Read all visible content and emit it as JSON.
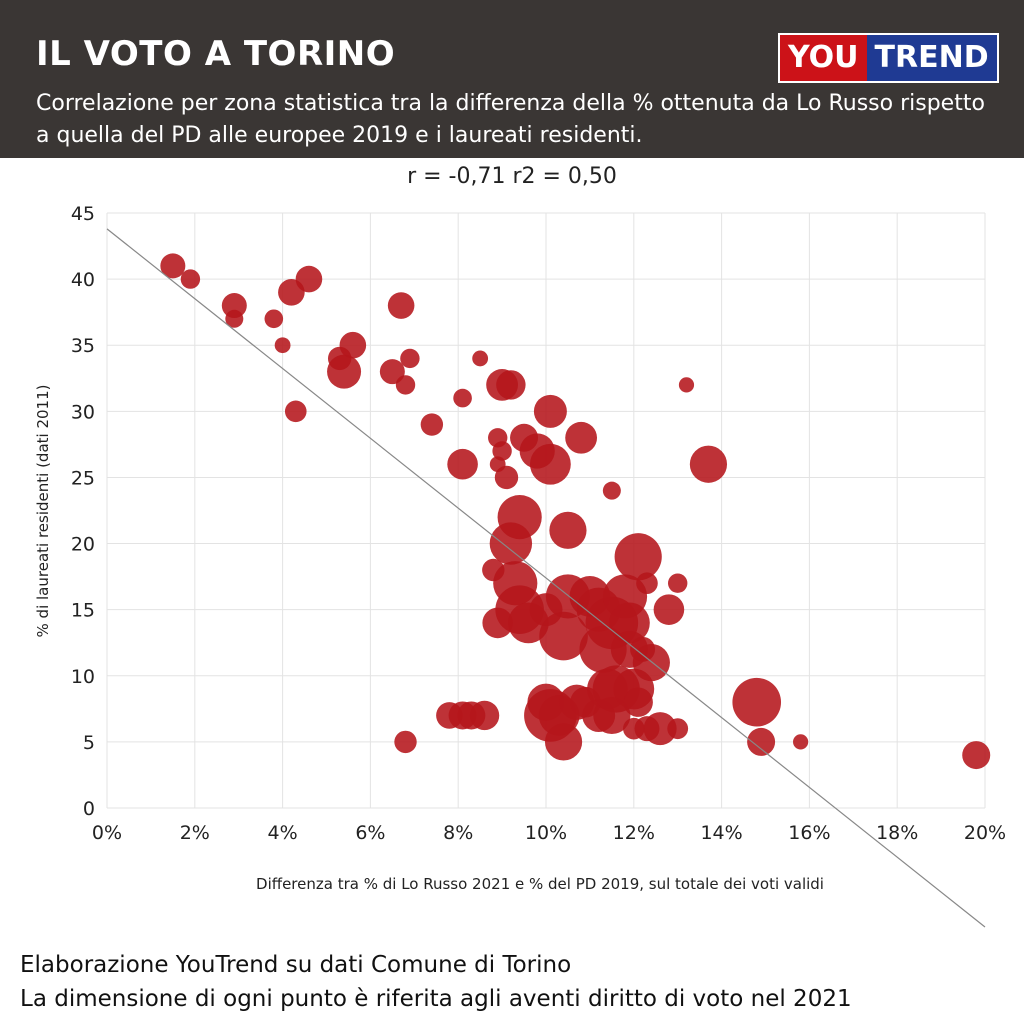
{
  "header": {
    "title": "IL VOTO A TORINO",
    "subtitle": "Correlazione per zona statistica tra la differenza della % ottenuta da Lo Russo rispetto a quella del PD alle europee 2019 e i laureati residenti.",
    "logo_you": "YOU",
    "logo_trend": "TREND"
  },
  "stats": "r = -0,71  r2 = 0,50",
  "footer": {
    "line1": "Elaborazione YouTrend su dati Comune di Torino",
    "line2": "La dimensione di ogni punto è riferita agli aventi diritto di voto nel 2021"
  },
  "colors": {
    "header_bg": "#3a3634",
    "point": "#b5161b",
    "logo_red": "#cc1218",
    "logo_blue": "#1f3a93",
    "trendline": "#888888"
  },
  "chart_data": {
    "type": "scatter",
    "xlabel": "Differenza tra % di Lo Russo 2021 e % del PD 2019, sul totale dei voti validi",
    "ylabel": "% di laureati residenti (dati 2011)",
    "xlim": [
      0,
      20
    ],
    "ylim": [
      0,
      45
    ],
    "xticks": [
      "0%",
      "2%",
      "4%",
      "6%",
      "8%",
      "10%",
      "12%",
      "14%",
      "16%",
      "18%",
      "20%"
    ],
    "yticks": [
      "0",
      "5",
      "10",
      "15",
      "20",
      "25",
      "30",
      "35",
      "40",
      "45"
    ],
    "grid": true,
    "trendline": {
      "x0": 0,
      "y0": 43.8,
      "x1": 20,
      "y1": -9
    },
    "points": [
      {
        "x": 1.5,
        "y": 41,
        "s": 3
      },
      {
        "x": 1.9,
        "y": 40,
        "s": 1.5
      },
      {
        "x": 2.9,
        "y": 38,
        "s": 3
      },
      {
        "x": 2.9,
        "y": 37,
        "s": 1.2
      },
      {
        "x": 3.8,
        "y": 37,
        "s": 1.3
      },
      {
        "x": 4.0,
        "y": 35,
        "s": 0.8
      },
      {
        "x": 4.2,
        "y": 39,
        "s": 3.5
      },
      {
        "x": 4.6,
        "y": 40,
        "s": 3.5
      },
      {
        "x": 4.3,
        "y": 30,
        "s": 2
      },
      {
        "x": 5.3,
        "y": 34,
        "s": 2.5
      },
      {
        "x": 5.6,
        "y": 35,
        "s": 3.5
      },
      {
        "x": 5.4,
        "y": 33,
        "s": 6.5
      },
      {
        "x": 6.5,
        "y": 33,
        "s": 3
      },
      {
        "x": 6.7,
        "y": 38,
        "s": 3.5
      },
      {
        "x": 6.9,
        "y": 34,
        "s": 1.5
      },
      {
        "x": 6.8,
        "y": 32,
        "s": 1.5
      },
      {
        "x": 7.4,
        "y": 29,
        "s": 2.2
      },
      {
        "x": 6.8,
        "y": 5,
        "s": 2.2
      },
      {
        "x": 7.8,
        "y": 7,
        "s": 3.5
      },
      {
        "x": 8.1,
        "y": 7,
        "s": 4
      },
      {
        "x": 8.3,
        "y": 7,
        "s": 4
      },
      {
        "x": 8.6,
        "y": 7,
        "s": 4.5
      },
      {
        "x": 8.1,
        "y": 26,
        "s": 5
      },
      {
        "x": 8.1,
        "y": 31,
        "s": 1.3
      },
      {
        "x": 8.5,
        "y": 34,
        "s": 0.8
      },
      {
        "x": 8.8,
        "y": 18,
        "s": 2.2
      },
      {
        "x": 8.9,
        "y": 14,
        "s": 5
      },
      {
        "x": 8.9,
        "y": 28,
        "s": 1.5
      },
      {
        "x": 9.0,
        "y": 27,
        "s": 1.5
      },
      {
        "x": 8.9,
        "y": 26,
        "s": 0.8
      },
      {
        "x": 9.0,
        "y": 32,
        "s": 5.5
      },
      {
        "x": 9.2,
        "y": 32,
        "s": 4.5
      },
      {
        "x": 9.1,
        "y": 25,
        "s": 2.5
      },
      {
        "x": 9.4,
        "y": 22,
        "s": 12
      },
      {
        "x": 9.2,
        "y": 20,
        "s": 11
      },
      {
        "x": 9.3,
        "y": 17,
        "s": 12
      },
      {
        "x": 9.4,
        "y": 15,
        "s": 15
      },
      {
        "x": 9.6,
        "y": 14,
        "s": 10
      },
      {
        "x": 9.5,
        "y": 28,
        "s": 4
      },
      {
        "x": 9.8,
        "y": 27,
        "s": 7
      },
      {
        "x": 10.1,
        "y": 30,
        "s": 6
      },
      {
        "x": 10.1,
        "y": 26,
        "s": 10
      },
      {
        "x": 10.0,
        "y": 15,
        "s": 6
      },
      {
        "x": 10.4,
        "y": 13,
        "s": 15
      },
      {
        "x": 10.5,
        "y": 16,
        "s": 12
      },
      {
        "x": 10.5,
        "y": 21,
        "s": 8
      },
      {
        "x": 10.8,
        "y": 28,
        "s": 5.5
      },
      {
        "x": 10.0,
        "y": 8,
        "s": 8
      },
      {
        "x": 10.1,
        "y": 7,
        "s": 18
      },
      {
        "x": 10.3,
        "y": 7,
        "s": 10
      },
      {
        "x": 10.4,
        "y": 5,
        "s": 8
      },
      {
        "x": 10.7,
        "y": 8,
        "s": 7
      },
      {
        "x": 10.9,
        "y": 8,
        "s": 5
      },
      {
        "x": 11.0,
        "y": 16,
        "s": 10
      },
      {
        "x": 11.2,
        "y": 15,
        "s": 12
      },
      {
        "x": 11.3,
        "y": 12,
        "s": 14
      },
      {
        "x": 11.5,
        "y": 14,
        "s": 18
      },
      {
        "x": 11.2,
        "y": 7,
        "s": 6
      },
      {
        "x": 11.4,
        "y": 9,
        "s": 10
      },
      {
        "x": 11.5,
        "y": 7,
        "s": 8
      },
      {
        "x": 11.6,
        "y": 9,
        "s": 14
      },
      {
        "x": 11.5,
        "y": 24,
        "s": 1.2
      },
      {
        "x": 11.8,
        "y": 16,
        "s": 12
      },
      {
        "x": 11.9,
        "y": 12,
        "s": 8
      },
      {
        "x": 11.9,
        "y": 14,
        "s": 10
      },
      {
        "x": 12.0,
        "y": 9,
        "s": 10
      },
      {
        "x": 12.0,
        "y": 6,
        "s": 2
      },
      {
        "x": 12.1,
        "y": 8,
        "s": 4.5
      },
      {
        "x": 12.1,
        "y": 19,
        "s": 14
      },
      {
        "x": 12.2,
        "y": 12,
        "s": 3
      },
      {
        "x": 12.3,
        "y": 17,
        "s": 2
      },
      {
        "x": 12.3,
        "y": 6,
        "s": 3
      },
      {
        "x": 12.4,
        "y": 11,
        "s": 8
      },
      {
        "x": 12.6,
        "y": 6,
        "s": 6
      },
      {
        "x": 12.8,
        "y": 15,
        "s": 5
      },
      {
        "x": 13.0,
        "y": 17,
        "s": 1.5
      },
      {
        "x": 13.0,
        "y": 6,
        "s": 1.8
      },
      {
        "x": 13.2,
        "y": 32,
        "s": 0.7
      },
      {
        "x": 13.7,
        "y": 26,
        "s": 8
      },
      {
        "x": 14.8,
        "y": 8,
        "s": 15
      },
      {
        "x": 14.9,
        "y": 5,
        "s": 4
      },
      {
        "x": 15.8,
        "y": 5,
        "s": 0.7
      },
      {
        "x": 19.8,
        "y": 4,
        "s": 4
      }
    ]
  }
}
